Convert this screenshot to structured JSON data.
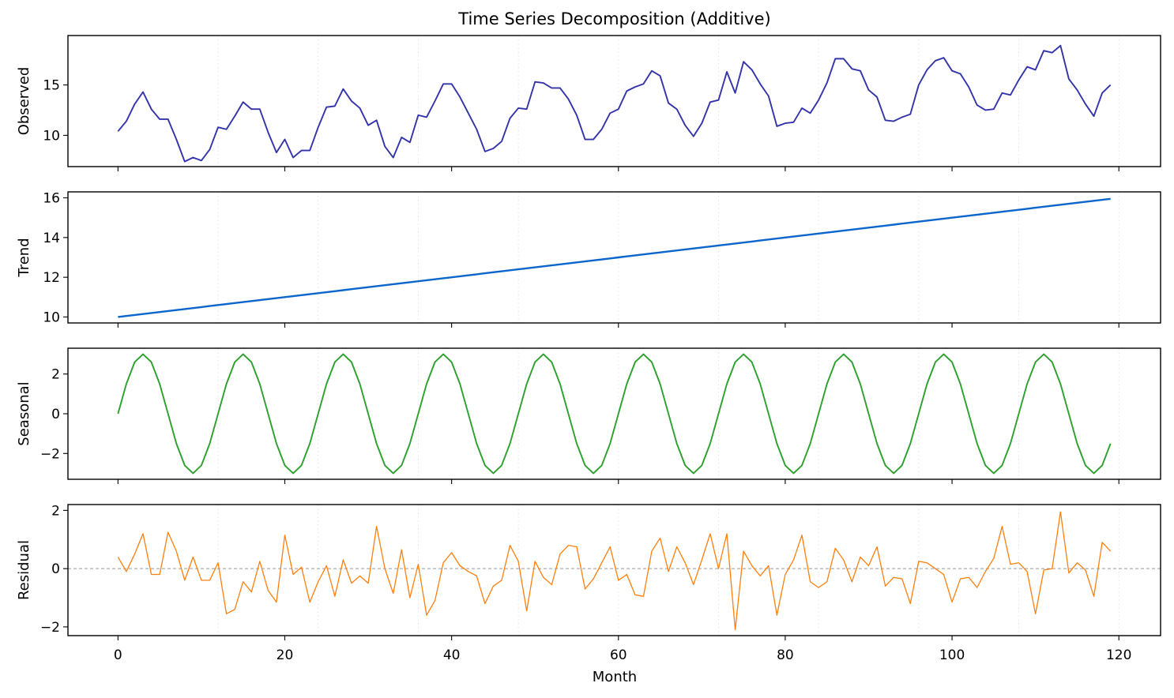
{
  "chart_data": {
    "type": "line",
    "title": "Time Series Decomposition (Additive)",
    "xlabel": "Month",
    "x": {
      "start": 0,
      "end": 119,
      "step": 1
    },
    "xlim": [
      -6,
      125
    ],
    "xticks": [
      0,
      20,
      40,
      60,
      80,
      100,
      120
    ],
    "series": [
      {
        "name": "Observed",
        "ylabel": "Observed",
        "color": "#3333aa",
        "ylim": [
          6.9,
          19.9
        ],
        "yticks": [
          10,
          15
        ],
        "values": [
          10.4,
          11.4,
          13.1,
          14.3,
          12.6,
          11.6,
          11.6,
          9.6,
          7.4,
          7.8,
          7.5,
          8.6,
          10.8,
          10.6,
          11.9,
          13.3,
          12.6,
          12.6,
          10.3,
          8.3,
          9.6,
          7.8,
          8.5,
          8.5,
          10.8,
          12.8,
          12.9,
          14.6,
          13.4,
          12.7,
          11.0,
          11.5,
          8.9,
          7.8,
          9.8,
          9.3,
          12.0,
          11.8,
          13.4,
          15.1,
          15.1,
          13.8,
          12.2,
          10.6,
          8.4,
          8.7,
          9.4,
          11.7,
          12.7,
          12.6,
          15.3,
          15.2,
          14.7,
          14.7,
          13.6,
          12.0,
          9.6,
          9.6,
          10.6,
          12.2,
          12.6,
          14.4,
          14.8,
          15.1,
          16.4,
          15.9,
          13.2,
          12.6,
          11.0,
          9.9,
          11.2,
          13.3,
          13.5,
          16.3,
          14.2,
          17.3,
          16.5,
          15.1,
          13.9,
          10.9,
          11.2,
          11.3,
          12.7,
          12.2,
          13.5,
          15.2,
          17.6,
          17.6,
          16.6,
          16.4,
          14.5,
          13.8,
          11.5,
          11.4,
          11.8,
          12.1,
          15.0,
          16.5,
          17.4,
          17.7,
          16.4,
          16.1,
          14.8,
          13.0,
          12.5,
          12.6,
          14.2,
          14.0,
          15.5,
          16.8,
          16.5,
          18.4,
          18.2,
          18.9,
          15.6,
          14.5,
          13.1,
          11.9,
          14.2,
          15.0
        ]
      },
      {
        "name": "Trend",
        "ylabel": "Trend",
        "color": "#0a66cc",
        "ylim": [
          9.7,
          16.3
        ],
        "yticks": [
          10,
          12,
          14,
          16
        ],
        "values": [
          10.0,
          10.05,
          10.1,
          10.15,
          10.2,
          10.25,
          10.3,
          10.35,
          10.4,
          10.45,
          10.5,
          10.55,
          10.6,
          10.65,
          10.7,
          10.75,
          10.8,
          10.85,
          10.9,
          10.95,
          11.0,
          11.05,
          11.1,
          11.15,
          11.2,
          11.25,
          11.3,
          11.35,
          11.4,
          11.45,
          11.5,
          11.55,
          11.6,
          11.65,
          11.7,
          11.75,
          11.8,
          11.85,
          11.9,
          11.95,
          12.0,
          12.05,
          12.1,
          12.15,
          12.2,
          12.25,
          12.3,
          12.35,
          12.4,
          12.45,
          12.5,
          12.55,
          12.6,
          12.65,
          12.7,
          12.75,
          12.8,
          12.85,
          12.9,
          12.95,
          13.0,
          13.05,
          13.1,
          13.15,
          13.2,
          13.25,
          13.3,
          13.35,
          13.4,
          13.45,
          13.5,
          13.55,
          13.6,
          13.65,
          13.7,
          13.75,
          13.8,
          13.85,
          13.9,
          13.95,
          14.0,
          14.05,
          14.1,
          14.15,
          14.2,
          14.25,
          14.3,
          14.35,
          14.4,
          14.45,
          14.5,
          14.55,
          14.6,
          14.65,
          14.7,
          14.75,
          14.8,
          14.85,
          14.9,
          14.95,
          15.0,
          15.05,
          15.1,
          15.15,
          15.2,
          15.25,
          15.3,
          15.35,
          15.4,
          15.45,
          15.5,
          15.55,
          15.6,
          15.65,
          15.7,
          15.75,
          15.8,
          15.85,
          15.9,
          15.95
        ]
      },
      {
        "name": "Seasonal",
        "ylabel": "Seasonal",
        "color": "#2ca02c",
        "ylim": [
          -3.3,
          3.3
        ],
        "yticks": [
          -2,
          0,
          2
        ],
        "values": [
          0.0,
          1.5,
          2.6,
          3.0,
          2.6,
          1.5,
          0.0,
          -1.5,
          -2.6,
          -3.0,
          -2.6,
          -1.5,
          0.0,
          1.5,
          2.6,
          3.0,
          2.6,
          1.5,
          0.0,
          -1.5,
          -2.6,
          -3.0,
          -2.6,
          -1.5,
          0.0,
          1.5,
          2.6,
          3.0,
          2.6,
          1.5,
          0.0,
          -1.5,
          -2.6,
          -3.0,
          -2.6,
          -1.5,
          0.0,
          1.5,
          2.6,
          3.0,
          2.6,
          1.5,
          0.0,
          -1.5,
          -2.6,
          -3.0,
          -2.6,
          -1.5,
          0.0,
          1.5,
          2.6,
          3.0,
          2.6,
          1.5,
          0.0,
          -1.5,
          -2.6,
          -3.0,
          -2.6,
          -1.5,
          0.0,
          1.5,
          2.6,
          3.0,
          2.6,
          1.5,
          0.0,
          -1.5,
          -2.6,
          -3.0,
          -2.6,
          -1.5,
          0.0,
          1.5,
          2.6,
          3.0,
          2.6,
          1.5,
          0.0,
          -1.5,
          -2.6,
          -3.0,
          -2.6,
          -1.5,
          0.0,
          1.5,
          2.6,
          3.0,
          2.6,
          1.5,
          0.0,
          -1.5,
          -2.6,
          -3.0,
          -2.6,
          -1.5,
          0.0,
          1.5,
          2.6,
          3.0,
          2.6,
          1.5,
          0.0,
          -1.5,
          -2.6,
          -3.0,
          -2.6,
          -1.5,
          0.0,
          1.5,
          2.6,
          3.0,
          2.6,
          1.5,
          0.0,
          -1.5,
          -2.6,
          -3.0,
          -2.6,
          -1.5
        ]
      },
      {
        "name": "Residual",
        "ylabel": "Residual",
        "color": "#ff7f0e",
        "ylim": [
          -2.3,
          2.2
        ],
        "yticks": [
          -2,
          0,
          2
        ],
        "zero_line": true,
        "values": [
          0.4,
          -0.1,
          0.5,
          1.2,
          -0.2,
          -0.2,
          1.25,
          0.6,
          -0.4,
          0.4,
          -0.4,
          -0.4,
          0.2,
          -1.55,
          -1.4,
          -0.45,
          -0.8,
          0.25,
          -0.75,
          -1.15,
          1.15,
          -0.2,
          0.05,
          -1.15,
          -0.45,
          0.1,
          -0.95,
          0.3,
          -0.5,
          -0.25,
          -0.5,
          1.45,
          0.0,
          -0.85,
          0.65,
          -1.0,
          0.15,
          -1.6,
          -1.1,
          0.2,
          0.55,
          0.1,
          -0.1,
          -0.25,
          -1.2,
          -0.6,
          -0.4,
          0.8,
          0.25,
          -1.45,
          0.25,
          -0.3,
          -0.55,
          0.5,
          0.8,
          0.75,
          -0.7,
          -0.35,
          0.2,
          0.75,
          -0.4,
          -0.2,
          -0.9,
          -0.95,
          0.6,
          1.05,
          -0.1,
          0.75,
          0.2,
          -0.55,
          0.3,
          1.2,
          0.0,
          1.2,
          -2.1,
          0.6,
          0.1,
          -0.25,
          0.1,
          -1.6,
          -0.2,
          0.3,
          1.15,
          -0.45,
          -0.65,
          -0.45,
          0.7,
          0.3,
          -0.45,
          0.4,
          0.1,
          0.75,
          -0.6,
          -0.3,
          -0.35,
          -1.2,
          0.25,
          0.2,
          0.0,
          -0.2,
          -1.15,
          -0.35,
          -0.3,
          -0.65,
          -0.1,
          0.35,
          1.45,
          0.15,
          0.2,
          -0.1,
          -1.55,
          -0.05,
          0.0,
          1.95,
          -0.15,
          0.2,
          -0.05,
          -0.95,
          0.9,
          0.6
        ]
      }
    ]
  }
}
